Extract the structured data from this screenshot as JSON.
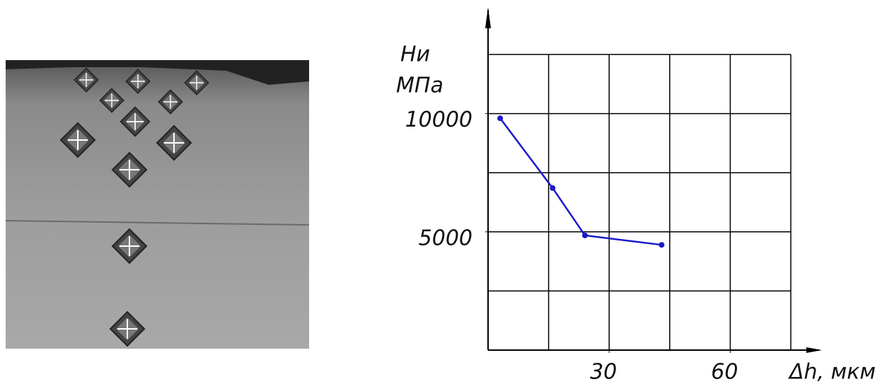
{
  "chart_data": {
    "type": "line",
    "y_label_line1": "Hи",
    "y_label_line2": "МПа",
    "x_label": "Δh, мкм",
    "x": [
      3,
      16,
      24,
      43
    ],
    "series": [
      {
        "name": "Hи",
        "color": "#1a1ac8",
        "values": [
          9800,
          6850,
          4850,
          4450
        ]
      }
    ],
    "xlim": [
      0,
      75
    ],
    "ylim": [
      0,
      12500
    ],
    "xticks": [
      30,
      60
    ],
    "yticks": [
      5000,
      10000
    ],
    "grid": true
  }
}
